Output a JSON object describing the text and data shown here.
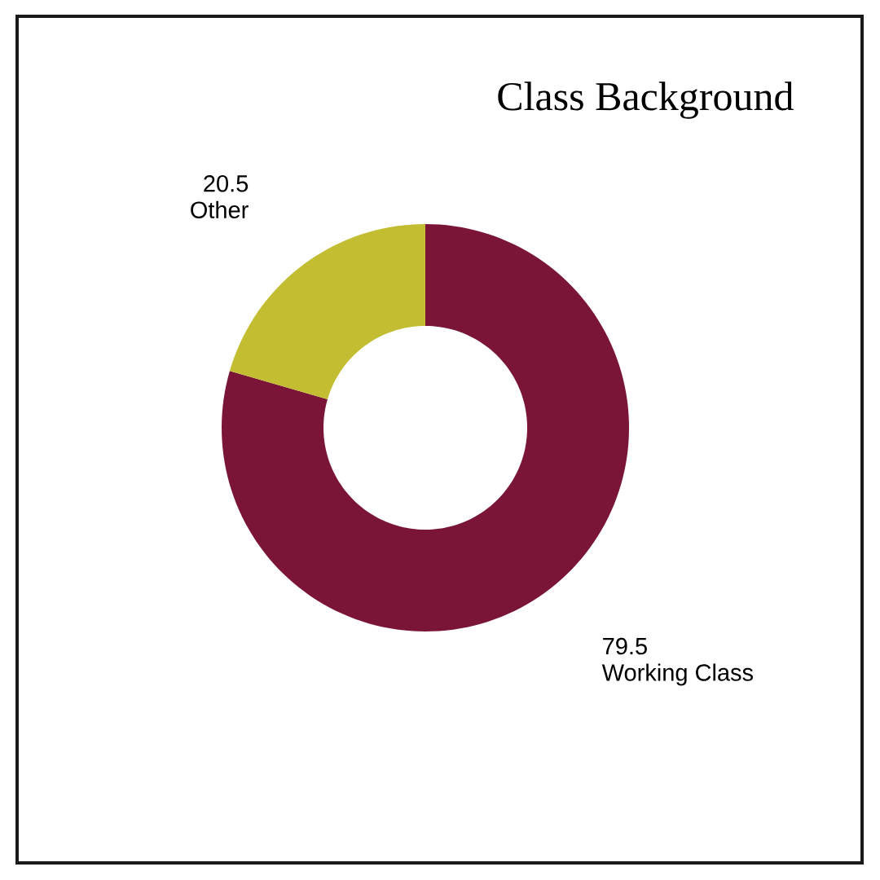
{
  "chart_data": {
    "type": "donut",
    "title": "Class Background",
    "categories": [
      "Working Class",
      "Other"
    ],
    "values": [
      79.5,
      20.5
    ],
    "colors": [
      "#7b1538",
      "#c2bd31"
    ],
    "data_labels": true
  }
}
